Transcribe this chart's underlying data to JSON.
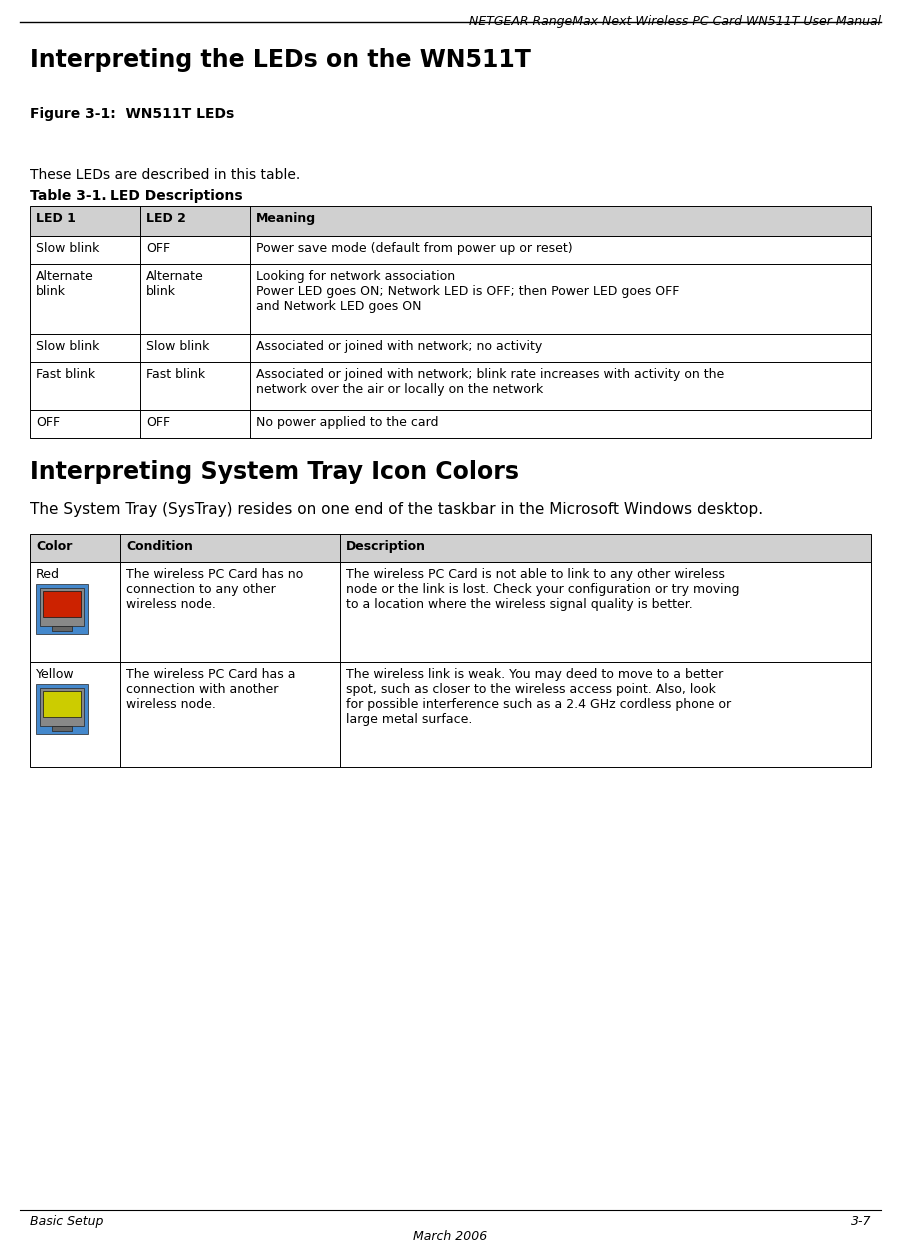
{
  "header_text": "NETGEAR RangeMax Next Wireless PC Card WN511T User Manual",
  "footer_left": "Basic Setup",
  "footer_right": "3-7",
  "footer_center": "March 2006",
  "section1_title": "Interpreting the LEDs on the WN511T",
  "figure_label": "Figure 3-1:  WN511T LEDs",
  "intro_text": "These LEDs are described in this table.",
  "table1_label": "Table 3-1.",
  "table1_title": "LED Descriptions",
  "table1_header": [
    "LED 1",
    "LED 2",
    "Meaning"
  ],
  "table1_rows": [
    [
      "Slow blink",
      "OFF",
      "Power save mode (default from power up or reset)"
    ],
    [
      "Alternate\nblink",
      "Alternate\nblink",
      "Looking for network association\nPower LED goes ON; Network LED is OFF; then Power LED goes OFF\nand Network LED goes ON"
    ],
    [
      "Slow blink",
      "Slow blink",
      "Associated or joined with network; no activity"
    ],
    [
      "Fast blink",
      "Fast blink",
      "Associated or joined with network; blink rate increases with activity on the\nnetwork over the air or locally on the network"
    ],
    [
      "OFF",
      "OFF",
      "No power applied to the card"
    ]
  ],
  "section2_title": "Interpreting System Tray Icon Colors",
  "section2_intro": "The System Tray (SysTray) resides on one end of the taskbar in the Microsoft Windows desktop.",
  "table2_header": [
    "Color",
    "Condition",
    "Description"
  ],
  "table2_rows": [
    [
      "Red",
      "The wireless PC Card has no\nconnection to any other\nwireless node.",
      "The wireless PC Card is not able to link to any other wireless\nnode or the link is lost. Check your configuration or try moving\nto a location where the wireless signal quality is better."
    ],
    [
      "Yellow",
      "The wireless PC Card has a\nconnection with another\nwireless node.",
      "The wireless link is weak. You may deed to move to a better\nspot, such as closer to the wireless access point. Also, look\nfor possible interference such as a 2.4 GHz cordless phone or\nlarge metal surface."
    ]
  ],
  "table_header_bg": "#d0d0d0",
  "bg_color": "#ffffff",
  "icon_red_color": "#cc2200",
  "icon_yellow_color": "#cccc00",
  "icon_blue_bg": "#4488cc"
}
